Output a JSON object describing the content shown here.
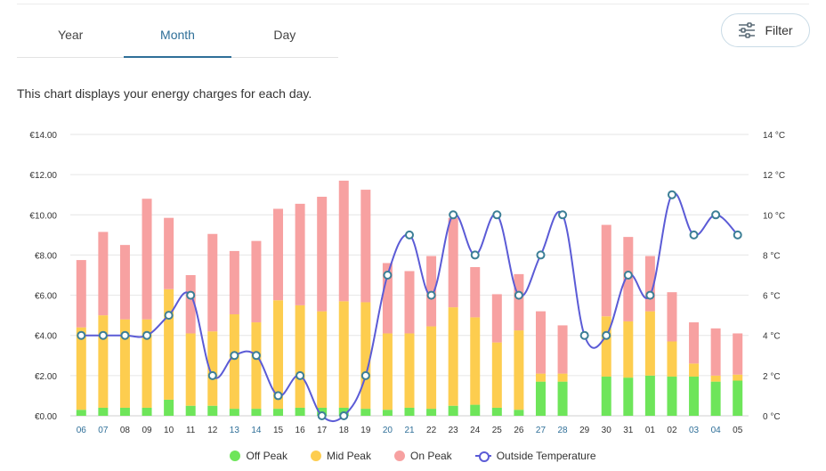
{
  "tabs": [
    {
      "label": "Year",
      "active": false
    },
    {
      "label": "Month",
      "active": true
    },
    {
      "label": "Day",
      "active": false
    }
  ],
  "filter": {
    "label": "Filter",
    "icon": "sliders-icon"
  },
  "description": "This chart displays your energy charges for each day.",
  "colors": {
    "off_peak": "#6ee55a",
    "mid_peak": "#fdcd4f",
    "on_peak": "#f7a1a1",
    "temperature": "#5b5bd6",
    "accent": "#2f6f98"
  },
  "chart_data": {
    "type": "bar",
    "stacked": true,
    "categories": [
      "06",
      "07",
      "08",
      "09",
      "10",
      "11",
      "12",
      "13",
      "14",
      "15",
      "16",
      "17",
      "18",
      "19",
      "20",
      "21",
      "22",
      "23",
      "24",
      "25",
      "26",
      "27",
      "28",
      "29",
      "30",
      "31",
      "01",
      "02",
      "03",
      "04",
      "05"
    ],
    "highlighted_categories": [
      "06",
      "07",
      "13",
      "14",
      "20",
      "21",
      "27",
      "28",
      "03",
      "04"
    ],
    "series": [
      {
        "name": "Off Peak",
        "values": [
          0.3,
          0.4,
          0.4,
          0.4,
          0.8,
          0.5,
          0.5,
          0.35,
          0.35,
          0.35,
          0.4,
          0.4,
          0.4,
          0.35,
          0.3,
          0.4,
          0.35,
          0.5,
          0.55,
          0.4,
          0.3,
          1.7,
          1.7,
          0,
          1.95,
          1.9,
          2.0,
          1.95,
          1.95,
          1.7,
          1.75
        ]
      },
      {
        "name": "Mid Peak",
        "values": [
          4.1,
          4.6,
          4.4,
          4.4,
          5.5,
          3.6,
          3.7,
          4.7,
          4.3,
          5.4,
          5.1,
          4.8,
          5.3,
          5.3,
          3.8,
          3.7,
          4.1,
          4.9,
          4.35,
          3.25,
          3.95,
          0.4,
          0.4,
          0,
          3.0,
          2.8,
          3.2,
          1.75,
          0.65,
          0.3,
          0.3
        ]
      },
      {
        "name": "On Peak",
        "values": [
          3.35,
          4.15,
          3.7,
          6.0,
          3.55,
          2.9,
          4.85,
          3.15,
          4.05,
          4.55,
          5.05,
          5.7,
          6.0,
          5.6,
          3.5,
          3.1,
          3.5,
          4.45,
          2.5,
          2.4,
          2.8,
          3.1,
          2.4,
          0,
          4.55,
          4.2,
          2.75,
          2.45,
          2.05,
          2.35,
          2.05
        ]
      },
      {
        "name": "Outside Temperature",
        "axis": "right",
        "values": [
          4,
          4,
          4,
          4,
          5,
          6,
          2,
          3,
          3,
          1,
          2,
          0,
          0,
          2,
          7,
          9,
          6,
          10,
          8,
          10,
          6,
          8,
          10,
          4,
          4,
          7,
          6,
          11,
          9,
          10,
          9
        ]
      }
    ],
    "ylim": [
      0,
      14
    ],
    "yticks": [
      "€0.00",
      "€2.00",
      "€4.00",
      "€6.00",
      "€8.00",
      "€10.00",
      "€12.00",
      "€14.00"
    ],
    "y2lim": [
      0,
      14
    ],
    "y2ticks": [
      "0 °C",
      "2 °C",
      "4 °C",
      "6 °C",
      "8 °C",
      "10 °C",
      "12 °C",
      "14 °C"
    ],
    "grid": true,
    "legend_position": "bottom"
  }
}
